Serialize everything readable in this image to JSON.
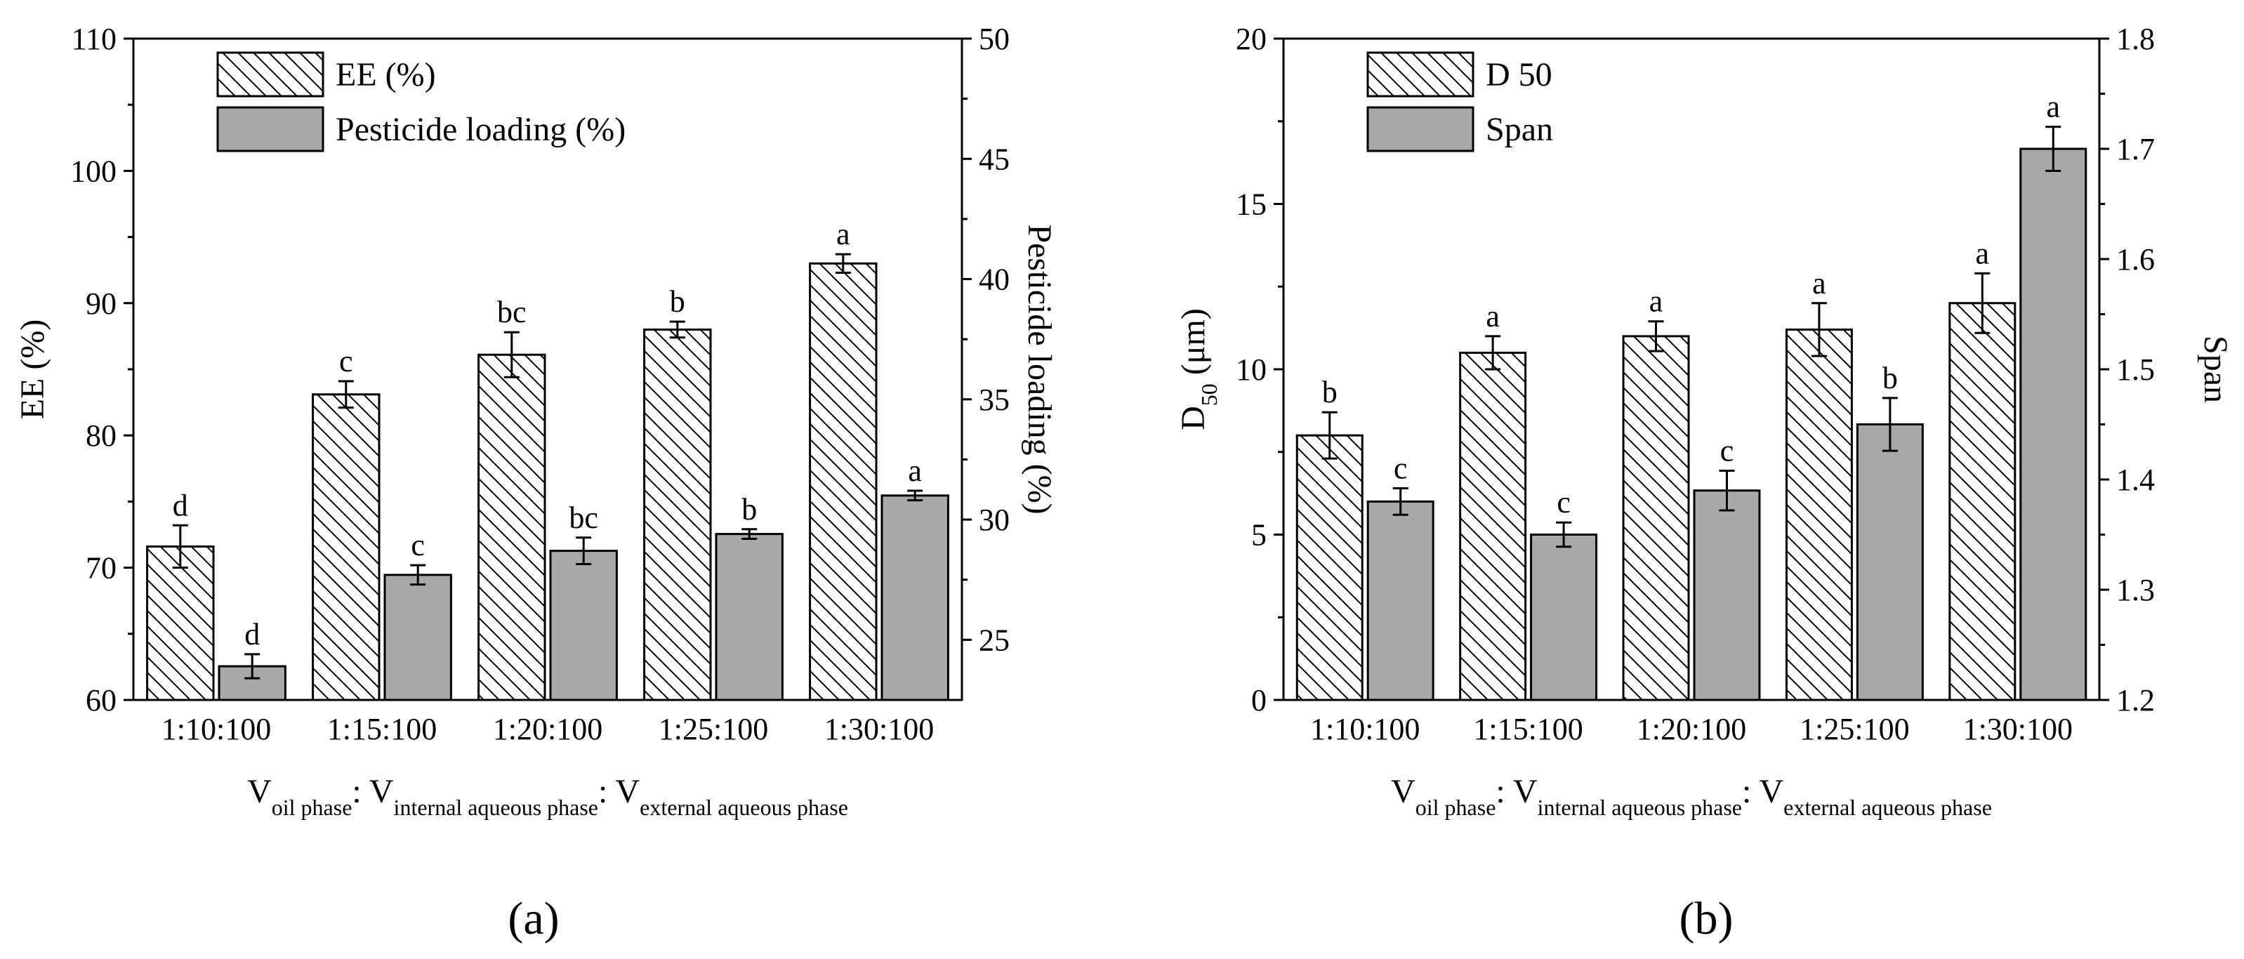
{
  "colors": {
    "solid": "#a9a9a9",
    "hatch_bg": "#ffffff",
    "line": "#000000"
  },
  "chart_data": [
    {
      "type": "bar",
      "panel_label": "(a)",
      "categories": [
        "1:10:100",
        "1:15:100",
        "1:20:100",
        "1:25:100",
        "1:30:100"
      ],
      "xlabel": {
        "v1": "V",
        "s1": "oil phase",
        "sep1": ": V",
        "s2": "internal aqueous phase",
        "sep2": ": V",
        "s3": "external aqueous phase"
      },
      "left_axis": {
        "label": "EE (%)",
        "ylim": [
          60,
          110
        ],
        "ticks": [
          60,
          70,
          80,
          90,
          100,
          110
        ]
      },
      "right_axis": {
        "label": "Pesticide loading (%)",
        "ylim": [
          22.5,
          50
        ],
        "ticks": [
          25,
          30,
          35,
          40,
          45,
          50
        ]
      },
      "legend": [
        "EE (%)",
        "Pesticide loading (%)"
      ],
      "series": [
        {
          "name": "EE (%)",
          "axis": "left",
          "style": "hatch",
          "values": [
            71.6,
            83.1,
            86.1,
            88.0,
            93.0
          ],
          "errors": [
            1.6,
            1.0,
            1.7,
            0.6,
            0.7
          ],
          "letters": [
            "d",
            "c",
            "bc",
            "b",
            "a"
          ]
        },
        {
          "name": "Pesticide loading (%)",
          "axis": "right",
          "style": "solid",
          "values": [
            23.9,
            27.7,
            28.7,
            29.4,
            31.0
          ],
          "errors": [
            0.5,
            0.4,
            0.55,
            0.2,
            0.2
          ],
          "letters": [
            "d",
            "c",
            "bc",
            "b",
            "a"
          ]
        }
      ]
    },
    {
      "type": "bar",
      "panel_label": "(b)",
      "categories": [
        "1:10:100",
        "1:15:100",
        "1:20:100",
        "1:25:100",
        "1:30:100"
      ],
      "xlabel": {
        "v1": "V",
        "s1": "oil phase",
        "sep1": ": V",
        "s2": "internal aqueous phase",
        "sep2": ": V",
        "s3": "external aqueous phase"
      },
      "left_axis": {
        "label": "D",
        "label_sub": "50",
        "label_suffix": " (μm)",
        "ylim": [
          0,
          20
        ],
        "ticks": [
          0,
          5,
          10,
          15,
          20
        ]
      },
      "right_axis": {
        "label": "Span",
        "ylim": [
          1.2,
          1.8
        ],
        "ticks": [
          1.2,
          1.3,
          1.4,
          1.5,
          1.6,
          1.7,
          1.8
        ]
      },
      "legend": [
        "D 50",
        "Span"
      ],
      "series": [
        {
          "name": "D 50",
          "axis": "left",
          "style": "hatch",
          "values": [
            8.0,
            10.5,
            11.0,
            11.2,
            12.0
          ],
          "errors": [
            0.7,
            0.5,
            0.45,
            0.8,
            0.9
          ],
          "letters": [
            "b",
            "a",
            "a",
            "a",
            "a"
          ]
        },
        {
          "name": "Span",
          "axis": "right",
          "style": "solid",
          "values": [
            1.38,
            1.35,
            1.39,
            1.45,
            1.7
          ],
          "errors": [
            0.012,
            0.011,
            0.018,
            0.024,
            0.02
          ],
          "letters": [
            "c",
            "c",
            "c",
            "b",
            "a"
          ]
        }
      ]
    }
  ]
}
